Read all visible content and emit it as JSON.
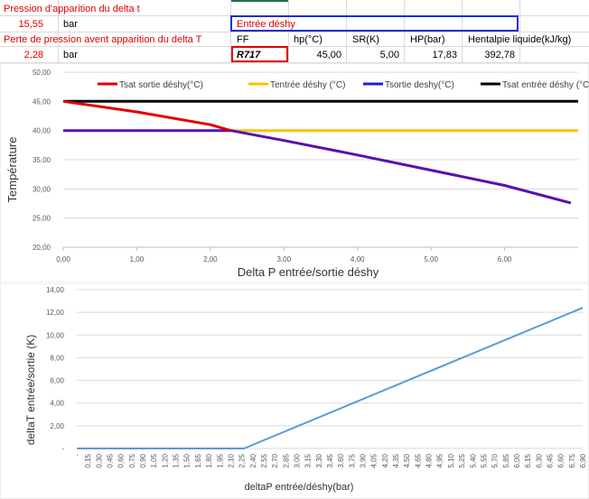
{
  "sheet": {
    "row1": {
      "label": "Pression d'apparition du delta t"
    },
    "row2": {
      "value": "15,55",
      "unit": "bar",
      "header": "Entrée déshy"
    },
    "row3": {
      "label": "Perte de pression avent apparition du delta T",
      "cols": [
        "FF",
        "hp(°C)",
        "SR(K)",
        "HP(bar)",
        "Hentalpie liquide(kJ/kg)"
      ]
    },
    "row4": {
      "value": "2,28",
      "unit": "bar",
      "vals": [
        "R717",
        "45,00",
        "5,00",
        "17,83",
        "392,78"
      ]
    }
  },
  "colors": {
    "red": "#e00000",
    "yellow": "#ffc000",
    "blue": "#1f1fd0",
    "black": "#000000",
    "purple": "#5a10b0",
    "lightblue": "#5b9bd5"
  },
  "chart_data": [
    {
      "type": "line",
      "title": "",
      "xlabel": "Delta P entrée/sortie déshy",
      "ylabel": "Température",
      "xlim": [
        0,
        7
      ],
      "ylim": [
        20,
        50
      ],
      "x_ticks": [
        "0,00",
        "1,00",
        "2,00",
        "3,00",
        "4,00",
        "5,00",
        "6,00"
      ],
      "y_ticks": [
        "20,00",
        "25,00",
        "30,00",
        "35,00",
        "40,00",
        "45,00",
        "50,00"
      ],
      "legend": [
        "Tsat sortie déshy(°C)",
        "Tentrée déshy (°C)",
        "Tsortie deshy(°C)",
        "Tsat entrée déshy (°C)"
      ],
      "series": [
        {
          "name": "Tsat sortie déshy(°C)",
          "color": "#e00000",
          "x": [
            0,
            1,
            2,
            2.28
          ],
          "y": [
            45,
            43.2,
            41.0,
            40.0
          ]
        },
        {
          "name": "Tentrée déshy (°C)",
          "color": "#ffc000",
          "x": [
            2.28,
            7
          ],
          "y": [
            40,
            40
          ]
        },
        {
          "name": "Tsortie deshy(°C)",
          "color": "#1f1fd0",
          "x": [
            0,
            2.28,
            3,
            4,
            5,
            6,
            6.9
          ],
          "y": [
            40,
            40,
            38.3,
            35.8,
            33.2,
            30.6,
            27.6
          ]
        },
        {
          "name": "Tsat entrée déshy (°C)",
          "color": "#000000",
          "x": [
            0,
            7
          ],
          "y": [
            45,
            45
          ]
        }
      ]
    },
    {
      "type": "line",
      "title": "",
      "xlabel": "deltaP entrée/déshy(bar)",
      "ylabel": "deltaT entrée/sortie (K)",
      "ylim": [
        0,
        14
      ],
      "y_ticks": [
        "-",
        "2,00",
        "4,00",
        "6,00",
        "8,00",
        "10,00",
        "12,00",
        "14,00"
      ],
      "categories": [
        "-",
        "0,15",
        "0,30",
        "0,45",
        "0,60",
        "0,75",
        "0,90",
        "1,05",
        "1,20",
        "1,35",
        "1,50",
        "1,65",
        "1,80",
        "1,95",
        "2,10",
        "2,25",
        "2,40",
        "2,55",
        "2,70",
        "2,85",
        "3,00",
        "3,15",
        "3,30",
        "3,45",
        "3,60",
        "3,75",
        "3,90",
        "4,05",
        "4,20",
        "4,35",
        "4,50",
        "4,65",
        "4,80",
        "4,95",
        "5,10",
        "5,25",
        "5,40",
        "5,55",
        "5,70",
        "5,85",
        "6,00",
        "6,15",
        "6,30",
        "6,45",
        "6,60",
        "6,75",
        "6,90"
      ],
      "series": [
        {
          "name": "deltaT",
          "color": "#5b9bd5",
          "x": [
            0,
            2.28,
            6.9
          ],
          "y": [
            0,
            0,
            12.4
          ]
        }
      ]
    }
  ]
}
